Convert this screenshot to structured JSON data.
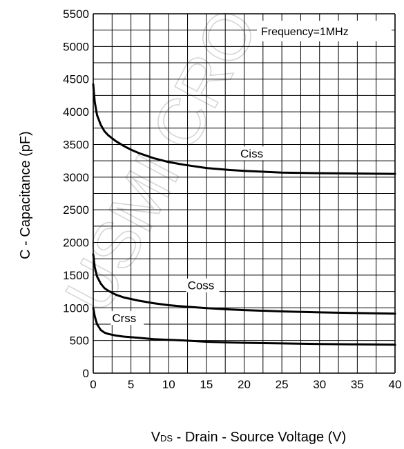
{
  "chart_data": {
    "type": "line",
    "title": "",
    "xlabel": "VDS - Drain - Source Voltage (V)",
    "xlabel_parts": {
      "main": "V",
      "sub": "DS",
      "rest": " - Drain - Source Voltage (V)"
    },
    "ylabel": "C - Capacitance (pF)",
    "xlim": [
      0,
      40
    ],
    "ylim": [
      0,
      5500
    ],
    "x_ticks": [
      0,
      5,
      10,
      15,
      20,
      25,
      30,
      35,
      40
    ],
    "y_ticks": [
      0,
      500,
      1000,
      1500,
      2000,
      2500,
      3000,
      3500,
      4000,
      4500,
      5000,
      5500
    ],
    "grid": true,
    "annotation": "Frequency=1MHz",
    "watermark": "USMI CRO",
    "series": [
      {
        "name": "Ciss",
        "x": [
          0,
          0.2,
          0.5,
          1,
          1.5,
          2,
          3,
          4,
          5,
          6,
          8,
          10,
          12,
          15,
          18,
          20,
          25,
          30,
          35,
          40
        ],
        "y": [
          4420,
          4150,
          3950,
          3800,
          3700,
          3640,
          3550,
          3480,
          3420,
          3370,
          3290,
          3230,
          3190,
          3140,
          3110,
          3095,
          3070,
          3060,
          3055,
          3050
        ]
      },
      {
        "name": "Coss",
        "x": [
          0,
          0.2,
          0.5,
          1,
          1.5,
          2,
          3,
          4,
          5,
          6,
          8,
          10,
          12,
          15,
          18,
          20,
          25,
          30,
          35,
          40
        ],
        "y": [
          1820,
          1620,
          1480,
          1370,
          1300,
          1260,
          1200,
          1160,
          1135,
          1110,
          1070,
          1040,
          1020,
          995,
          975,
          965,
          945,
          930,
          920,
          910
        ]
      },
      {
        "name": "Crss",
        "x": [
          0,
          0.2,
          0.5,
          1,
          1.5,
          2,
          3,
          4,
          5,
          6,
          8,
          10,
          12,
          15,
          18,
          20,
          25,
          30,
          35,
          40
        ],
        "y": [
          1000,
          870,
          750,
          660,
          620,
          600,
          575,
          560,
          550,
          540,
          520,
          510,
          500,
          480,
          470,
          465,
          455,
          445,
          440,
          435
        ]
      }
    ],
    "label_positions": [
      {
        "series": "Ciss",
        "x": 19.5,
        "y": 3300
      },
      {
        "series": "Coss",
        "x": 12.5,
        "y": 1280
      },
      {
        "series": "Crss",
        "x": 2.5,
        "y": 780
      }
    ]
  }
}
